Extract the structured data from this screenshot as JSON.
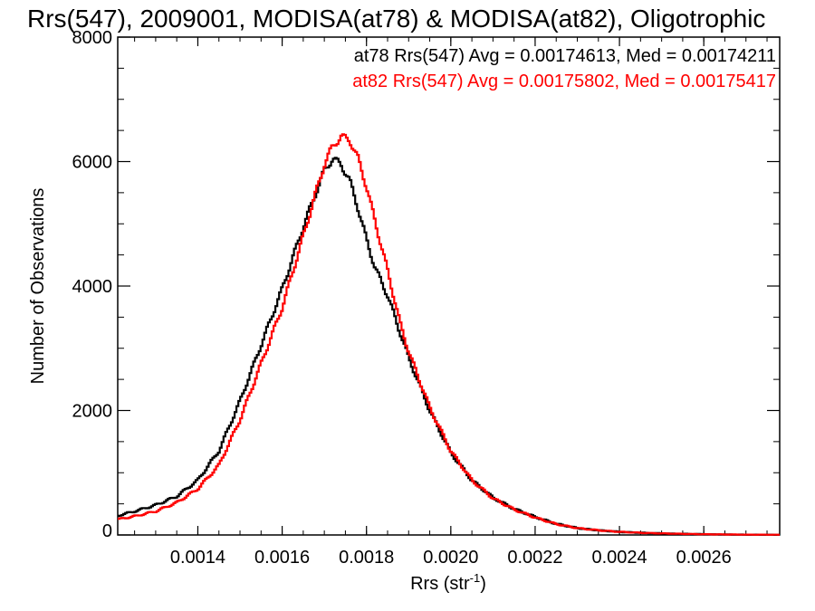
{
  "chart_data": {
    "type": "line",
    "title": "Rrs(547), 2009001, MODISA(at78) & MODISA(at82), Oligotrophic",
    "xlabel": "Rrs (str",
    "xlabel_sup": "-1",
    "xlabel_close": ")",
    "ylabel": "Number of Observations",
    "xlim": [
      0.00121,
      0.00278
    ],
    "ylim": [
      0,
      8000
    ],
    "xticks": [
      0.0014,
      0.0016,
      0.0018,
      0.002,
      0.0022,
      0.0024,
      0.0026
    ],
    "xtick_labels": [
      "0.0014",
      "0.0016",
      "0.0018",
      "0.0020",
      "0.0022",
      "0.0024",
      "0.0026"
    ],
    "yticks": [
      0,
      2000,
      4000,
      6000,
      8000
    ],
    "ytick_labels": [
      "0",
      "2000",
      "4000",
      "6000",
      "8000"
    ],
    "legend_position": "top-right",
    "series": [
      {
        "name": "at78",
        "legend": "at78 Rrs(547) Avg = 0.00174613, Med = 0.00174211",
        "color": "#000000",
        "points": [
          [
            0.00121,
            310
          ],
          [
            0.00125,
            380
          ],
          [
            0.0013,
            480
          ],
          [
            0.00135,
            620
          ],
          [
            0.0014,
            880
          ],
          [
            0.00145,
            1350
          ],
          [
            0.0015,
            2150
          ],
          [
            0.00155,
            3050
          ],
          [
            0.0016,
            3950
          ],
          [
            0.00165,
            4950
          ],
          [
            0.00168,
            5500
          ],
          [
            0.0017,
            5850
          ],
          [
            0.00172,
            6050
          ],
          [
            0.00174,
            5950
          ],
          [
            0.00176,
            5700
          ],
          [
            0.00178,
            5250
          ],
          [
            0.0018,
            4750
          ],
          [
            0.00182,
            4300
          ],
          [
            0.00185,
            3850
          ],
          [
            0.00188,
            3250
          ],
          [
            0.0019,
            2850
          ],
          [
            0.00195,
            2000
          ],
          [
            0.002,
            1320
          ],
          [
            0.00205,
            880
          ],
          [
            0.0021,
            600
          ],
          [
            0.00215,
            420
          ],
          [
            0.0022,
            290
          ],
          [
            0.00225,
            180
          ],
          [
            0.0023,
            110
          ],
          [
            0.00235,
            75
          ],
          [
            0.0024,
            50
          ],
          [
            0.00245,
            35
          ],
          [
            0.0025,
            25
          ],
          [
            0.00255,
            18
          ],
          [
            0.0026,
            12
          ],
          [
            0.00265,
            8
          ],
          [
            0.0027,
            5
          ],
          [
            0.00278,
            3
          ]
        ]
      },
      {
        "name": "at82",
        "legend": "at82 Rrs(547) Avg = 0.00175802, Med = 0.00175417",
        "color": "#ff0000",
        "points": [
          [
            0.00121,
            250
          ],
          [
            0.00125,
            300
          ],
          [
            0.0013,
            380
          ],
          [
            0.00135,
            520
          ],
          [
            0.0014,
            740
          ],
          [
            0.00145,
            1120
          ],
          [
            0.0015,
            1850
          ],
          [
            0.00155,
            2750
          ],
          [
            0.0016,
            3650
          ],
          [
            0.00165,
            4800
          ],
          [
            0.00168,
            5500
          ],
          [
            0.0017,
            5950
          ],
          [
            0.00172,
            6250
          ],
          [
            0.00174,
            6400
          ],
          [
            0.00176,
            6350
          ],
          [
            0.00178,
            6050
          ],
          [
            0.0018,
            5600
          ],
          [
            0.00182,
            5050
          ],
          [
            0.00185,
            4250
          ],
          [
            0.00188,
            3400
          ],
          [
            0.0019,
            2950
          ],
          [
            0.00195,
            2050
          ],
          [
            0.002,
            1350
          ],
          [
            0.00205,
            880
          ],
          [
            0.0021,
            590
          ],
          [
            0.00215,
            410
          ],
          [
            0.0022,
            280
          ],
          [
            0.00225,
            175
          ],
          [
            0.0023,
            110
          ],
          [
            0.00235,
            75
          ],
          [
            0.0024,
            50
          ],
          [
            0.00245,
            35
          ],
          [
            0.0025,
            25
          ],
          [
            0.00255,
            18
          ],
          [
            0.0026,
            12
          ],
          [
            0.00265,
            8
          ],
          [
            0.0027,
            5
          ],
          [
            0.00278,
            3
          ]
        ]
      }
    ]
  }
}
